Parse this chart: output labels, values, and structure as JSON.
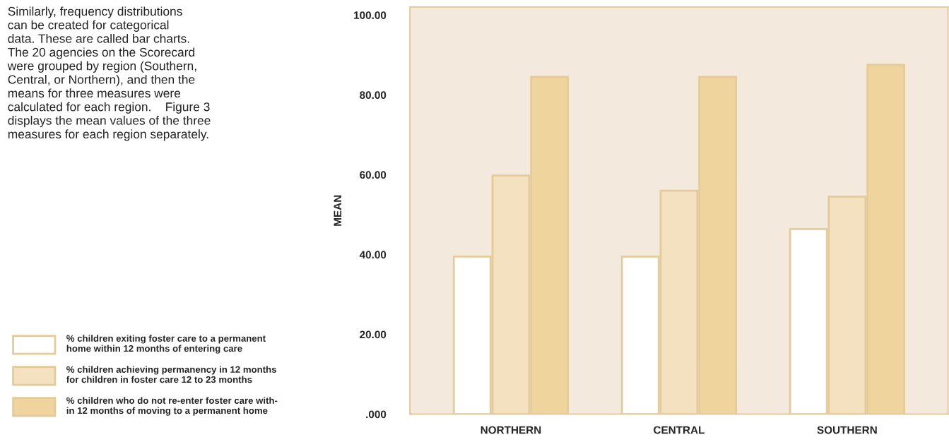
{
  "chart_data": {
    "type": "bar",
    "ylabel": "MEAN",
    "categories": [
      "NORTHERN",
      "CENTRAL",
      "SOUTHERN"
    ],
    "series": [
      {
        "name": "% children exiting foster care to a permanent\nhome within 12 months of entering care",
        "color": "#ffffff",
        "values": [
          39.5,
          39.5,
          46.4
        ]
      },
      {
        "name": "% children achieving permanency in 12 months\nfor children in foster care 12 to 23 months",
        "color": "#f3e1c0",
        "values": [
          59.8,
          56.0,
          54.5
        ]
      },
      {
        "name": "% children who do not re-enter foster care with-\nin 12 months of moving to a permanent home",
        "color": "#f0d49e",
        "values": [
          84.5,
          84.5,
          87.5
        ]
      }
    ],
    "ylim": [
      0,
      102
    ],
    "yticks": [
      {
        "value": 0,
        "label": ".000"
      },
      {
        "value": 20,
        "label": "20.00"
      },
      {
        "value": 40,
        "label": "40.00"
      },
      {
        "value": 60,
        "label": "60.00"
      },
      {
        "value": 80,
        "label": "80.00"
      },
      {
        "value": 100,
        "label": "100.00"
      }
    ],
    "grid": false,
    "legend": "left",
    "annotations": [
      "Similarly, frequency distributions\ncan be created for categorical\ndata. These are called bar charts.\nThe 20 agencies on the Scorecard\nwere grouped by region (Southern,\nCentral, or Northern), and then the\nmeans for three measures were\ncalculated for each region.    Figure 3\ndisplays the mean values of the three\nmeasures for each region separately."
    ]
  }
}
